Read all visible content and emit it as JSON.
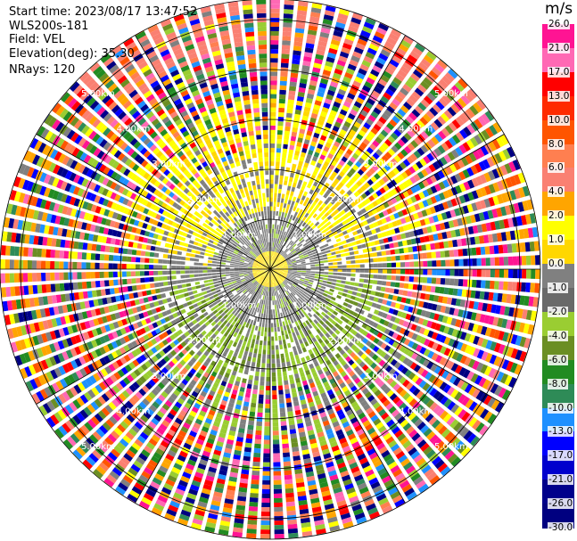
{
  "header": {
    "start_time": "Start time: 2023/08/17 13:47:52",
    "instrument": "WLS200s-181",
    "field": "Field: VEL",
    "elevation": "Elevation(deg): 35.30",
    "nrays": "NRays: 120"
  },
  "colorbar": {
    "unit": "m/s",
    "ticks": [
      "26.0",
      "21.0",
      "17.0",
      "13.0",
      "10.0",
      "8.0",
      "6.0",
      "4.0",
      "2.0",
      "1.0",
      "0.0",
      "-1.0",
      "-2.0",
      "-4.0",
      "-6.0",
      "-8.0",
      "-10.0",
      "-13.0",
      "-17.0",
      "-21.0",
      "-26.0",
      "-30.0"
    ],
    "colors": [
      "#ff1493",
      "#ff69b4",
      "#ff0000",
      "#ff2a00",
      "#ff5500",
      "#ff7f50",
      "#fa8072",
      "#ffa500",
      "#ffff00",
      "#ffd700",
      "#808080",
      "#696969",
      "#9acd32",
      "#6b8e23",
      "#228b22",
      "#2e8b57",
      "#1e90ff",
      "#0000ff",
      "#0000cd",
      "#00008b",
      "#000080",
      "#191970"
    ]
  },
  "chart_data": {
    "type": "heatmap",
    "subtype": "polar ppi scan",
    "field": "VEL",
    "units": "m/s",
    "vmin": -30.0,
    "vmax": 26.0,
    "nrays": 120,
    "range_rings_km": [
      1.0,
      2.0,
      3.0,
      4.0,
      5.0,
      6.0
    ],
    "ring_labels": [
      "1.00km",
      "2.00km",
      "3.00km",
      "4.00km",
      "5.00km"
    ],
    "spokes_deg": [
      0,
      30,
      60,
      90,
      120,
      150,
      180,
      210,
      240,
      270,
      300,
      330
    ],
    "pattern": {
      "inner_positive_ring_km": [
        0.0,
        0.35
      ],
      "inner_grey_band_km": [
        0.45,
        1.1
      ],
      "yellow_band_north_km": [
        1.35,
        2.1
      ],
      "green_band_south_km": [
        0.9,
        2.4
      ],
      "noise_beyond_km": 2.3
    }
  }
}
